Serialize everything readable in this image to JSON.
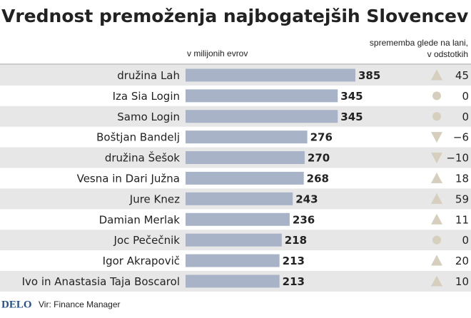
{
  "chart_data": {
    "type": "bar",
    "orientation": "horizontal",
    "title": "Vrednost premoženja najbogatejših Slovencev",
    "unit_label": "v milijonih evrov",
    "change_label": [
      "sprememba glede na lani,",
      "v odstotkih"
    ],
    "categories": [
      "družina Lah",
      "Iza Sia Login",
      "Samo Login",
      "Boštjan Bandelj",
      "družina Šešok",
      "Vesna in Dari Južna",
      "Jure Knez",
      "Damian Merlak",
      "Joc Pečečnik",
      "Igor Akrapovič",
      "Ivo in Anastasia Taja Boscarol"
    ],
    "values": [
      385,
      345,
      345,
      276,
      270,
      268,
      243,
      236,
      218,
      213,
      213
    ],
    "color": "#a9b3c8",
    "change": {
      "values": [
        45,
        0,
        0,
        -6,
        -10,
        18,
        59,
        11,
        0,
        20,
        10
      ],
      "value_labels": [
        "45",
        "0",
        "0",
        "−6",
        "−10",
        "18",
        "59",
        "11",
        "0",
        "20",
        "10"
      ],
      "color": "#d6cfbd"
    },
    "logo": "DELO",
    "source": "Vir: Finance Manager"
  }
}
